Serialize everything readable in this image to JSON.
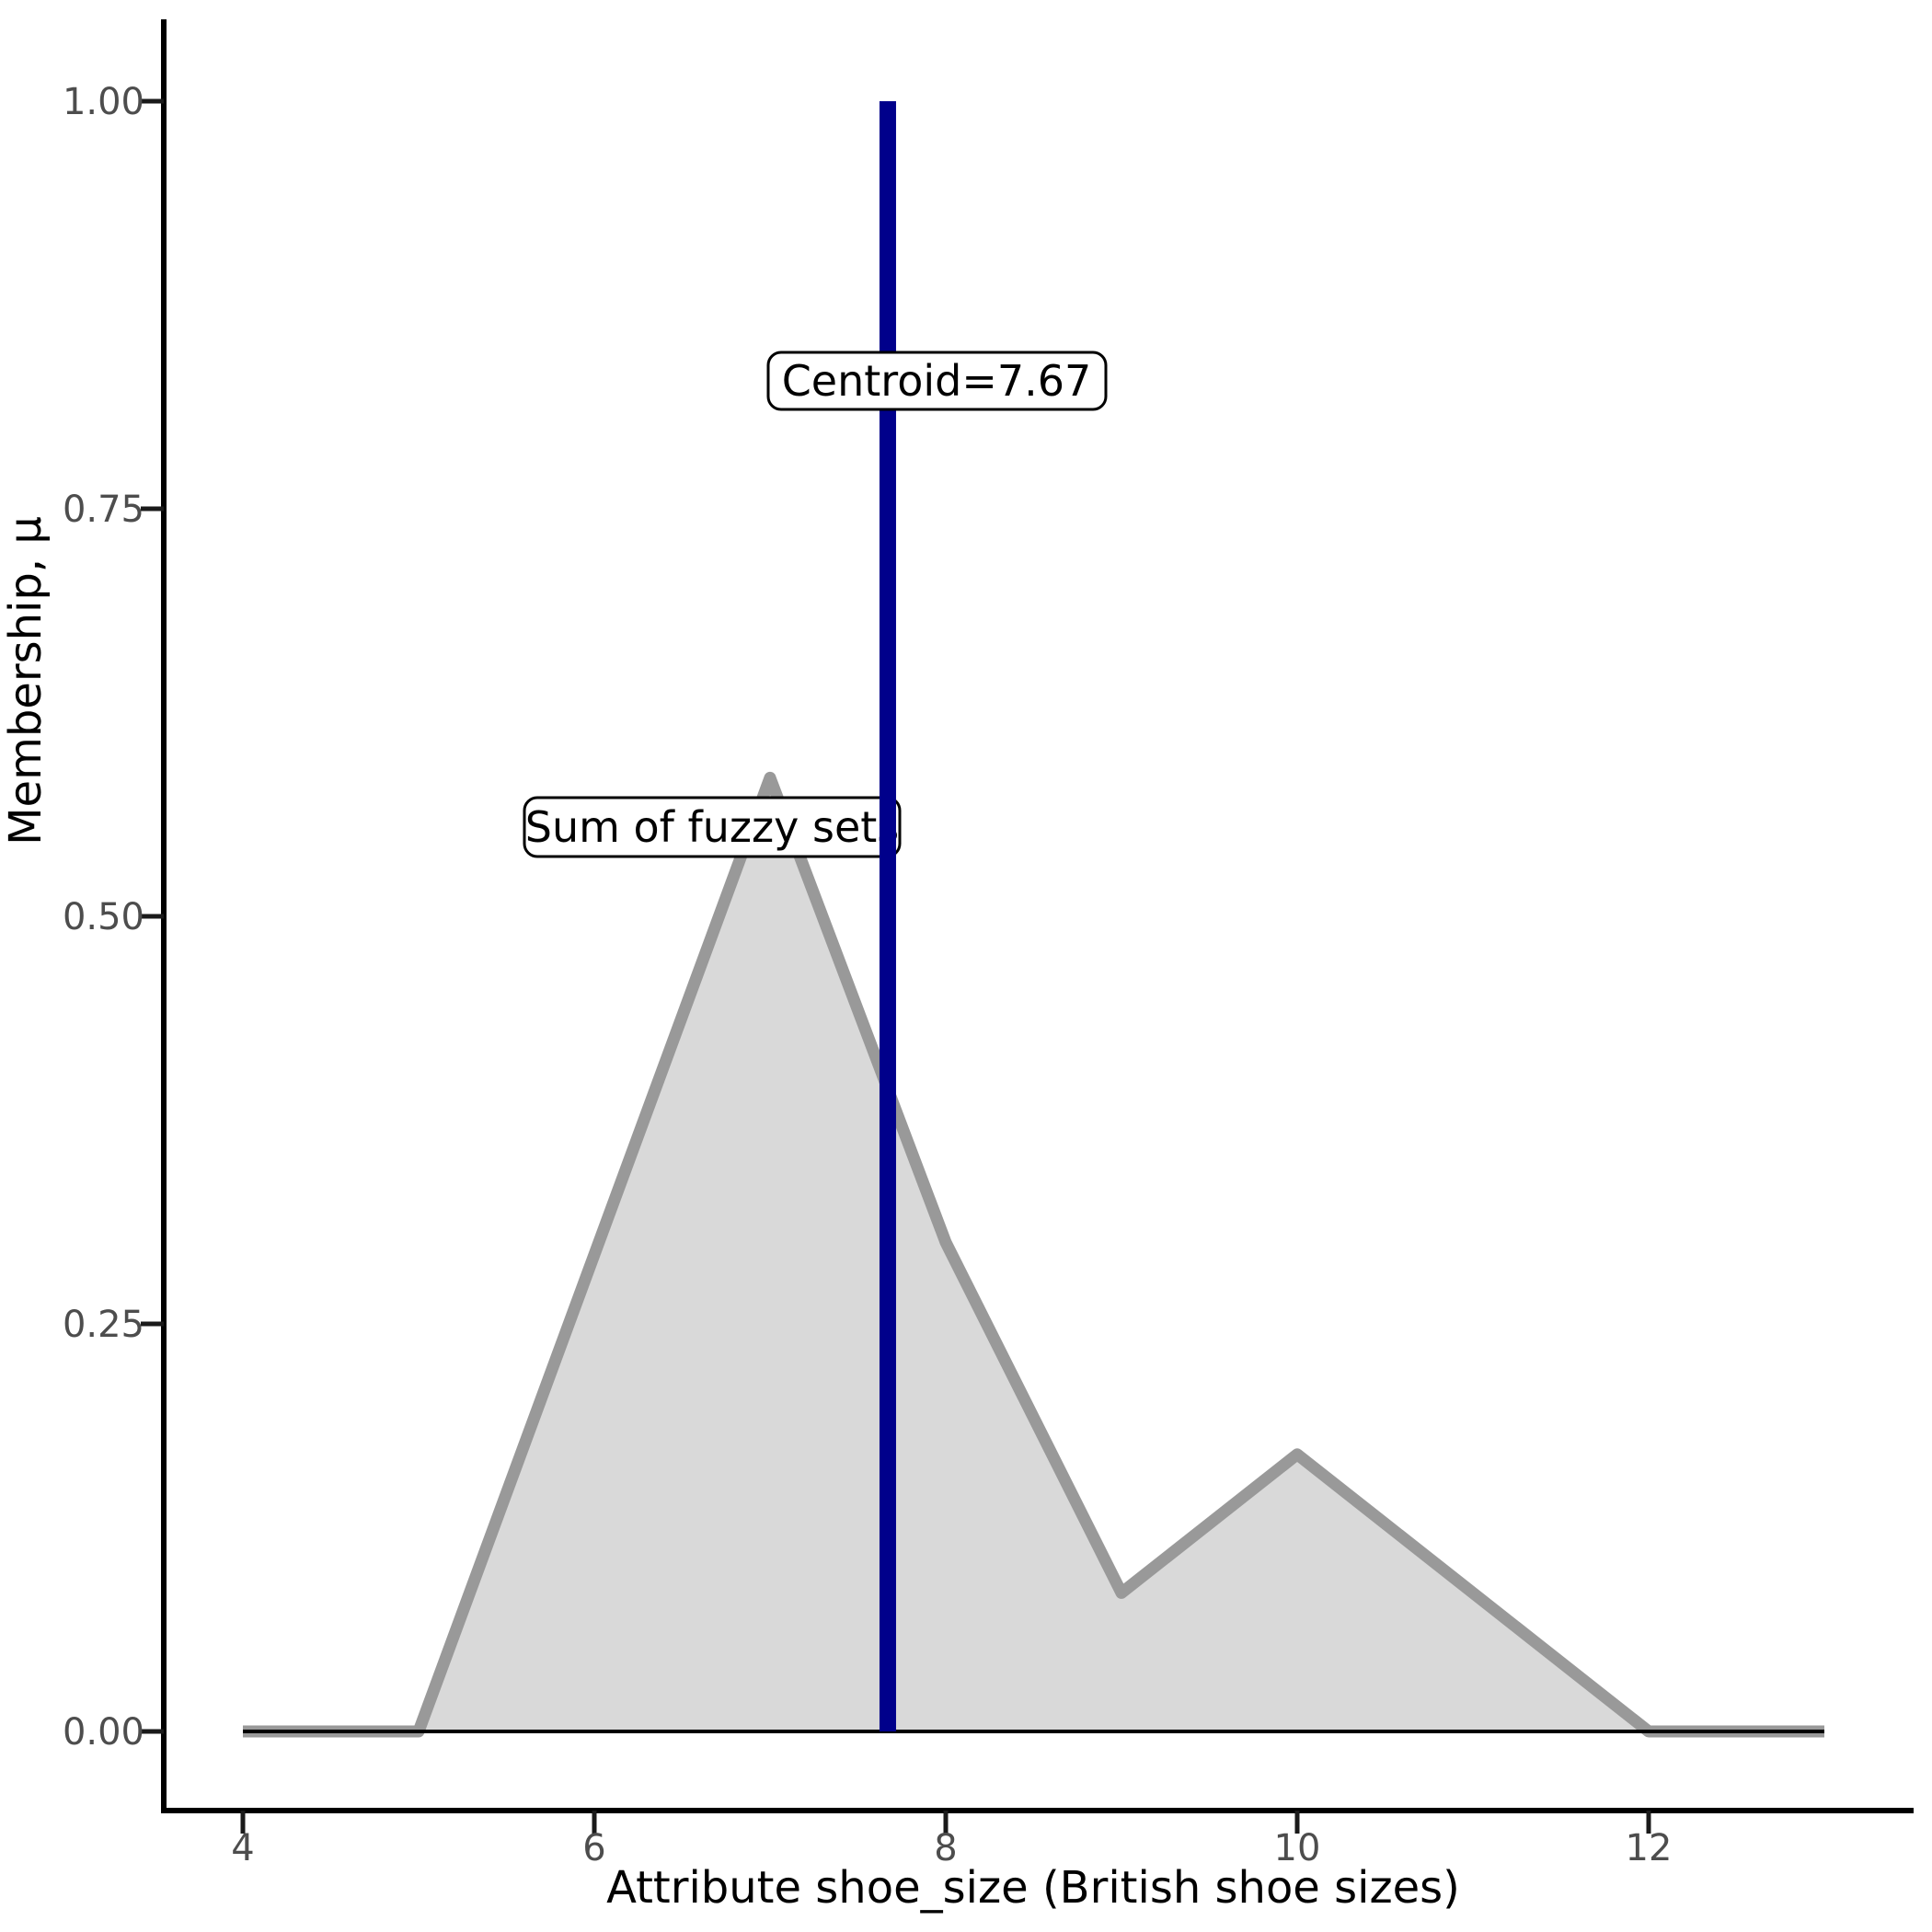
{
  "chart_data": {
    "type": "area",
    "title": "",
    "xlabel": "Attribute shoe_size (British shoe sizes)",
    "ylabel": "Membership, μ",
    "x_axis": {
      "tick_values": [
        4,
        6,
        8,
        10,
        12
      ],
      "tick_labels": [
        "4",
        "6",
        "8",
        "10",
        "12"
      ],
      "range": [
        3.55,
        13.45
      ]
    },
    "y_axis": {
      "tick_values": [
        0,
        0.25,
        0.5,
        0.75,
        1.0
      ],
      "tick_labels": [
        "0.00",
        "0.25",
        "0.50",
        "0.75",
        "1.00"
      ],
      "range": [
        -0.05,
        1.05
      ]
    },
    "grid": "off",
    "legend": "none",
    "series": [
      {
        "name": "Sum of fuzzy sets",
        "type": "area",
        "x": [
          4,
          5,
          7,
          8,
          9,
          10,
          12,
          13
        ],
        "y": [
          0,
          0,
          0.585,
          0.3,
          0.085,
          0.17,
          0,
          0
        ],
        "line_color": "#999999",
        "fill_color": "#D9D9D9"
      },
      {
        "name": "baseline",
        "type": "line",
        "x": [
          4,
          13
        ],
        "y": [
          0,
          0
        ],
        "line_color": "#000000"
      }
    ],
    "vline": {
      "x": 7.67,
      "y_from": 0,
      "y_to": 1.0,
      "color": "#00008B",
      "label": "Centroid=7.67"
    },
    "annotations": [
      {
        "text": "Centroid=7.67"
      },
      {
        "text": "Sum of fuzzy sets"
      }
    ]
  },
  "labels": {
    "centroid": "Centroid=7.67",
    "sum": "Sum of fuzzy sets"
  },
  "colors": {
    "centroid_line": "#00008B",
    "curve_line": "#999999",
    "curve_fill": "#D9D9D9",
    "tick_text": "#4d4d4d",
    "axis_line": "#000000"
  }
}
